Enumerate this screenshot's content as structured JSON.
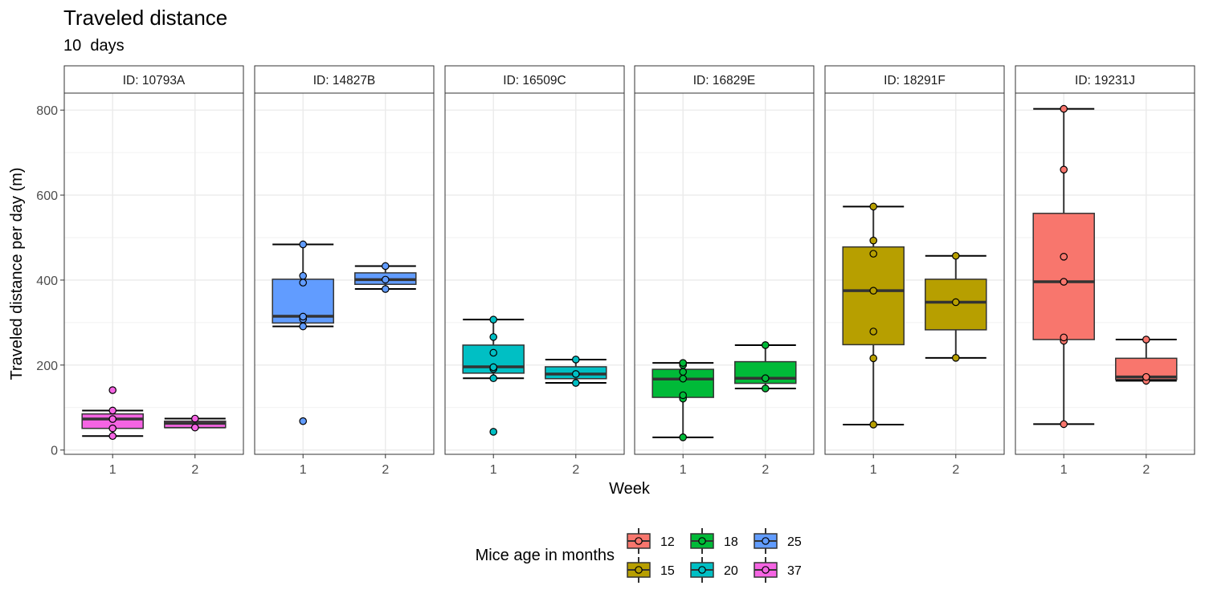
{
  "chart_data": {
    "type": "boxplot",
    "title": "Traveled distance",
    "subtitle": "10  days",
    "xlabel": "Week",
    "ylabel": "Traveled distance per day (m)",
    "ylim": [
      -10,
      840
    ],
    "yticks": [
      0,
      200,
      400,
      600,
      800
    ],
    "categories": [
      "1",
      "2"
    ],
    "grid": true,
    "legend": {
      "title": "Mice age in months",
      "position": "bottom",
      "entries": [
        {
          "label": "12",
          "color": "#F8766D"
        },
        {
          "label": "15",
          "color": "#B79F00"
        },
        {
          "label": "18",
          "color": "#00BA38"
        },
        {
          "label": "20",
          "color": "#00BFC4"
        },
        {
          "label": "25",
          "color": "#619CFF"
        },
        {
          "label": "37",
          "color": "#F564E3"
        }
      ]
    },
    "panels": [
      {
        "id": "ID: 10793A",
        "age": "37",
        "color": "#F564E3",
        "weeks": [
          {
            "week": "1",
            "whisker_low": 33,
            "q1": 51,
            "median": 73,
            "q3": 85,
            "whisker_high": 93,
            "points": [
              33,
              51,
              73,
              93
            ],
            "outliers": [
              141
            ]
          },
          {
            "week": "2",
            "whisker_low": 53,
            "q1": 53,
            "median": 63,
            "q3": 68,
            "whisker_high": 74,
            "points": [
              53,
              74
            ],
            "outliers": []
          }
        ]
      },
      {
        "id": "ID: 14827B",
        "age": "25",
        "color": "#619CFF",
        "weeks": [
          {
            "week": "1",
            "whisker_low": 291,
            "q1": 299,
            "median": 315,
            "q3": 402,
            "whisker_high": 484,
            "points": [
              291,
              308,
              314,
              394,
              410,
              484
            ],
            "outliers": [
              68
            ]
          },
          {
            "week": "2",
            "whisker_low": 379,
            "q1": 390,
            "median": 401,
            "q3": 417,
            "whisker_high": 433,
            "points": [
              379,
              401,
              433
            ],
            "outliers": []
          }
        ]
      },
      {
        "id": "ID: 16509C",
        "age": "20",
        "color": "#00BFC4",
        "weeks": [
          {
            "week": "1",
            "whisker_low": 169,
            "q1": 181,
            "median": 196,
            "q3": 247,
            "whisker_high": 307,
            "points": [
              169,
              191,
              195,
              229,
              266,
              307
            ],
            "outliers": [
              43
            ]
          },
          {
            "week": "2",
            "whisker_low": 158,
            "q1": 168,
            "median": 179,
            "q3": 196,
            "whisker_high": 213,
            "points": [
              158,
              179,
              213
            ],
            "outliers": []
          }
        ]
      },
      {
        "id": "ID: 16829E",
        "age": "18",
        "color": "#00BA38",
        "weeks": [
          {
            "week": "1",
            "whisker_low": 30,
            "q1": 124,
            "median": 167,
            "q3": 190,
            "whisker_high": 205,
            "points": [
              30,
              121,
              129,
              168,
              184,
              200,
              205
            ],
            "outliers": []
          },
          {
            "week": "2",
            "whisker_low": 145,
            "q1": 157,
            "median": 169,
            "q3": 208,
            "whisker_high": 247,
            "points": [
              145,
              169,
              247
            ],
            "outliers": []
          }
        ]
      },
      {
        "id": "ID: 18291F",
        "age": "15",
        "color": "#B79F00",
        "weeks": [
          {
            "week": "1",
            "whisker_low": 60,
            "q1": 248,
            "median": 375,
            "q3": 478,
            "whisker_high": 573,
            "points": [
              60,
              216,
              279,
              375,
              462,
              493,
              573
            ],
            "outliers": []
          },
          {
            "week": "2",
            "whisker_low": 217,
            "q1": 283,
            "median": 348,
            "q3": 402,
            "whisker_high": 457,
            "points": [
              217,
              348,
              457
            ],
            "outliers": []
          }
        ]
      },
      {
        "id": "ID: 19231J",
        "age": "12",
        "color": "#F8766D",
        "weeks": [
          {
            "week": "1",
            "whisker_low": 61,
            "q1": 260,
            "median": 396,
            "q3": 557,
            "whisker_high": 803,
            "points": [
              61,
              257,
              265,
              396,
              455,
              660,
              803
            ],
            "outliers": []
          },
          {
            "week": "2",
            "whisker_low": 163,
            "q1": 166,
            "median": 172,
            "q3": 216,
            "whisker_high": 260,
            "points": [
              163,
              172,
              260
            ],
            "outliers": []
          }
        ]
      }
    ]
  }
}
